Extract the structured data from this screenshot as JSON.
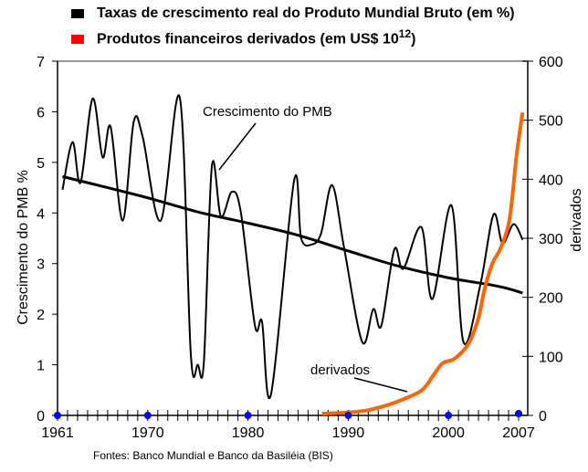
{
  "legend": [
    {
      "label": "Taxas de crescimento real do Produto Mundial Bruto (em %)",
      "color": "#000000"
    },
    {
      "label_main": "Produtos financeiros derivados (em US$ 10",
      "label_sup": "12",
      "label_end": ")",
      "color": "#ff0000"
    }
  ],
  "source": "Fontes: Banco Mundial e Banco da Basiléia (BIS)",
  "chart_data": {
    "type": "line",
    "ylabel": "Crescimento do PMB  %",
    "y2label": "derivados",
    "xlim": [
      1961,
      2007
    ],
    "ylim": [
      0,
      7
    ],
    "y2lim": [
      0,
      600
    ],
    "x_tick_labels": [
      "1961",
      "1970",
      "1980",
      "1990",
      "2000",
      "2007"
    ],
    "y_tick_labels": [
      "0",
      "1",
      "2",
      "3",
      "4",
      "5",
      "6",
      "7"
    ],
    "y2_tick_labels": [
      "0",
      "100",
      "200",
      "300",
      "400",
      "500",
      "600"
    ],
    "annotations": [
      "Crescimento do PMB",
      "derivados"
    ],
    "series": [
      {
        "axis": "left",
        "color": "#000000",
        "points": [
          [
            1961.5,
            4.46
          ],
          [
            1962.5,
            5.4
          ],
          [
            1963.3,
            4.6
          ],
          [
            1964.5,
            6.26
          ],
          [
            1965.5,
            5.1
          ],
          [
            1966.3,
            5.7
          ],
          [
            1967.5,
            3.85
          ],
          [
            1968.6,
            5.8
          ],
          [
            1969.5,
            5.5
          ],
          [
            1971.3,
            3.85
          ],
          [
            1973.2,
            6.28
          ],
          [
            1974.3,
            1.2
          ],
          [
            1975,
            1.0
          ],
          [
            1975.6,
            1.05
          ],
          [
            1976.4,
            4.93
          ],
          [
            1977.3,
            3.93
          ],
          [
            1978.4,
            4.42
          ],
          [
            1979.3,
            4.0
          ],
          [
            1980.7,
            1.77
          ],
          [
            1981.4,
            1.85
          ],
          [
            1982.3,
            0.42
          ],
          [
            1984.6,
            4.64
          ],
          [
            1985.3,
            3.5
          ],
          [
            1986.4,
            3.38
          ],
          [
            1987.3,
            3.6
          ],
          [
            1988.4,
            4.55
          ],
          [
            1989.6,
            3.3
          ],
          [
            1991.4,
            1.45
          ],
          [
            1992.5,
            2.1
          ],
          [
            1993.3,
            1.77
          ],
          [
            1994.6,
            3.28
          ],
          [
            1995.5,
            2.9
          ],
          [
            1997.3,
            3.72
          ],
          [
            1998.4,
            2.3
          ],
          [
            2000.3,
            4.15
          ],
          [
            2001.5,
            1.45
          ],
          [
            2003.2,
            2.6
          ],
          [
            2004.5,
            3.97
          ],
          [
            2005.4,
            3.4
          ],
          [
            2006.5,
            3.78
          ],
          [
            2007.4,
            3.47
          ]
        ]
      },
      {
        "axis": "left",
        "color": "#000000",
        "trend": true,
        "points": [
          [
            1961.5,
            4.72
          ],
          [
            1965,
            4.55
          ],
          [
            1970,
            4.3
          ],
          [
            1975,
            4.02
          ],
          [
            1980,
            3.8
          ],
          [
            1985,
            3.56
          ],
          [
            1990,
            3.25
          ],
          [
            1995,
            2.95
          ],
          [
            2000,
            2.72
          ],
          [
            2005,
            2.55
          ],
          [
            2007.4,
            2.42
          ]
        ]
      },
      {
        "axis": "right",
        "color": "#ff6600",
        "points": [
          [
            1987.4,
            3
          ],
          [
            1990,
            5
          ],
          [
            1992,
            9
          ],
          [
            1994,
            18
          ],
          [
            1995,
            24
          ],
          [
            1997.3,
            42
          ],
          [
            1998.5,
            68
          ],
          [
            1999.4,
            88
          ],
          [
            2000.5,
            95
          ],
          [
            2001.5,
            110
          ],
          [
            2002.2,
            128
          ],
          [
            2003,
            165
          ],
          [
            2003.6,
            213
          ],
          [
            2004.4,
            258
          ],
          [
            2005.2,
            283
          ],
          [
            2006.1,
            333
          ],
          [
            2006.8,
            441
          ],
          [
            2007.4,
            513
          ]
        ]
      }
    ],
    "markers_x": [
      1961,
      1970,
      1980,
      1990,
      2000,
      2007
    ],
    "grid": false,
    "legend_position": "top-left"
  }
}
